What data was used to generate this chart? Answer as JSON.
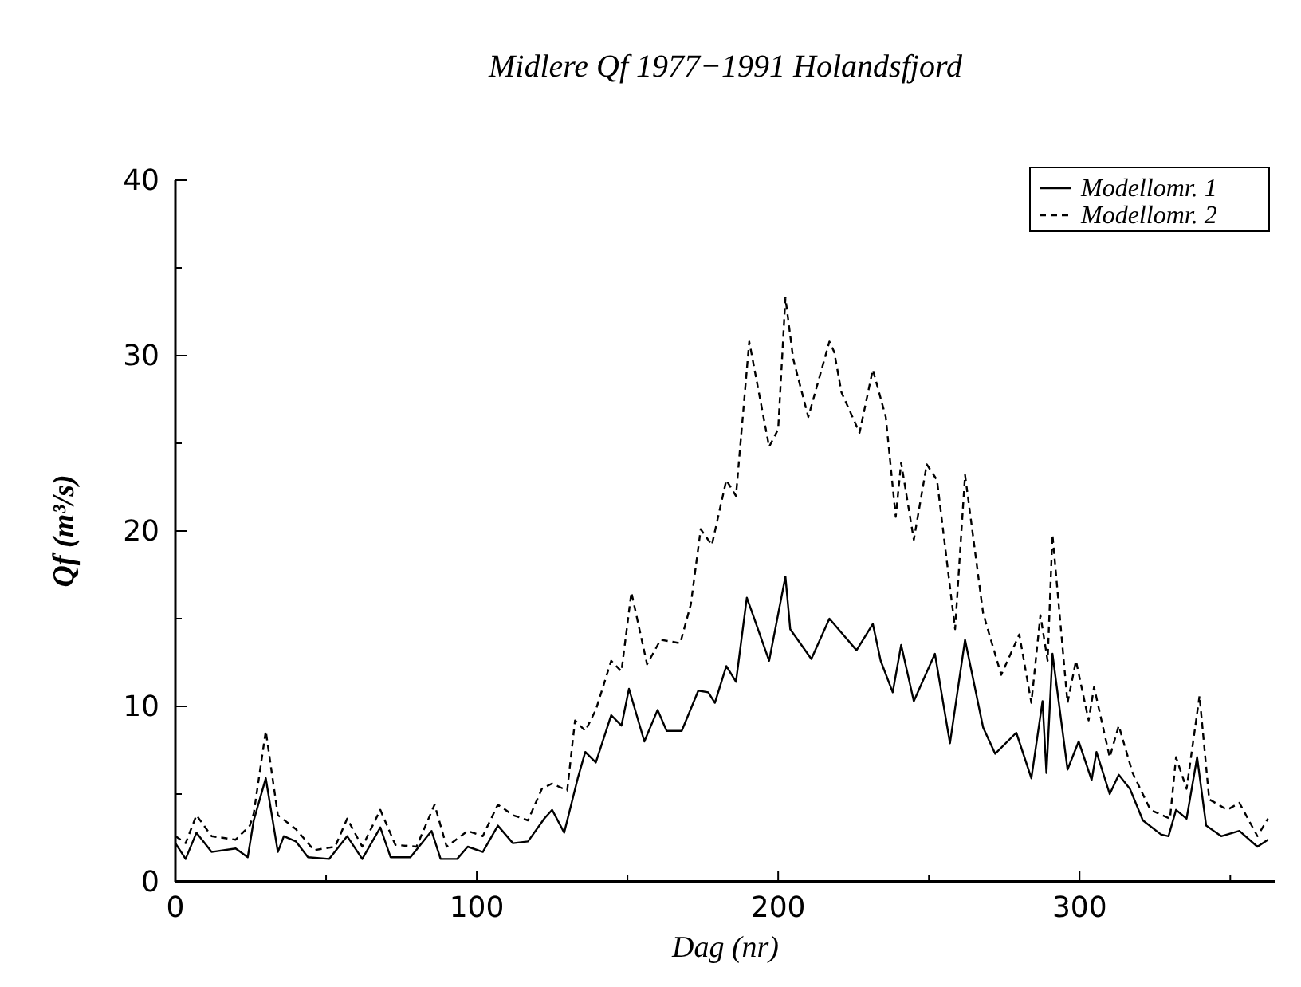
{
  "chart_data": {
    "type": "line",
    "title": "Midlere Qf 1977−1991 Holandsfjord",
    "xlabel": "Dag (nr)",
    "ylabel": "Qf (m³/s)",
    "xlim": [
      0,
      365
    ],
    "xticks": [
      0,
      {
        "value": 50,
        "label": null
      },
      100,
      {
        "value": 150,
        "label": null
      },
      200,
      {
        "value": 250,
        "label": null
      },
      300,
      {
        "value": 350,
        "label": null
      }
    ],
    "ylim": [
      0,
      40
    ],
    "yticks": [
      0,
      {
        "value": 5,
        "label": null
      },
      10,
      {
        "value": 15,
        "label": null
      },
      20,
      {
        "value": 25,
        "label": null
      },
      30,
      {
        "value": 35,
        "label": null
      },
      40
    ],
    "legend": "top right",
    "grid": false,
    "series": [
      {
        "name": "Modellomr. 1",
        "color": "#000000",
        "line_style": "solid",
        "x": [
          0,
          3.4,
          7,
          12,
          20,
          24,
          26,
          30,
          34,
          36,
          40,
          44,
          51,
          57,
          62,
          68,
          71.4,
          78,
          85,
          88,
          93.5,
          97,
          102,
          107,
          112,
          117,
          122.4,
          125,
          129,
          133.5,
          136,
          139.5,
          144.6,
          148,
          150.5,
          155.6,
          160,
          163,
          168,
          173.5,
          176.8,
          179,
          182.8,
          186,
          189.6,
          197,
          202.4,
          204,
          211,
          217,
          220,
          226,
          231.4,
          234,
          238,
          240.8,
          245,
          252,
          257,
          262,
          268,
          272,
          279,
          284,
          287.7,
          289,
          291,
          296,
          299.7,
          304,
          305.6,
          310,
          313,
          316.7,
          321,
          327,
          329.5,
          332,
          335.5,
          339,
          342,
          347,
          353,
          359,
          362.5
        ],
        "values": [
          2.2,
          1.3,
          2.8,
          1.7,
          1.9,
          1.4,
          3.5,
          5.9,
          1.7,
          2.6,
          2.3,
          1.4,
          1.3,
          2.6,
          1.3,
          3.1,
          1.4,
          1.4,
          2.9,
          1.3,
          1.3,
          2.0,
          1.7,
          3.2,
          2.2,
          2.3,
          3.6,
          4.1,
          2.8,
          5.9,
          7.4,
          6.8,
          9.5,
          8.9,
          11.0,
          8.0,
          9.8,
          8.6,
          8.6,
          10.9,
          10.8,
          10.2,
          12.3,
          11.4,
          16.2,
          12.6,
          17.4,
          14.4,
          12.7,
          15.0,
          14.4,
          13.2,
          14.7,
          12.6,
          10.8,
          13.5,
          10.3,
          13.0,
          7.9,
          13.8,
          8.8,
          7.3,
          8.5,
          5.9,
          10.3,
          6.2,
          13.0,
          6.4,
          8.0,
          5.8,
          7.4,
          5.0,
          6.1,
          5.3,
          3.5,
          2.7,
          2.6,
          4.1,
          3.6,
          7.1,
          3.2,
          2.6,
          2.9,
          2.0,
          2.4
        ]
      },
      {
        "name": "Modellomr. 2",
        "color": "#000000",
        "line_style": "dashed",
        "x": [
          0,
          3.4,
          7,
          12,
          20,
          24.7,
          26,
          30,
          34,
          40,
          46,
          53,
          57,
          62,
          68,
          73,
          80,
          86,
          90,
          97,
          102,
          107,
          112,
          117,
          121.6,
          125,
          130,
          132.6,
          136,
          139.5,
          144.6,
          148,
          151.3,
          156.5,
          161,
          167.5,
          171,
          174.3,
          178,
          182.8,
          186,
          190.4,
          197,
          200,
          202.4,
          205,
          210,
          217,
          218.6,
          221,
          227,
          231.4,
          235.7,
          239,
          240.8,
          245,
          249.3,
          252.7,
          258.7,
          262,
          268,
          274,
          280,
          284,
          287,
          289.4,
          291,
          296,
          298.8,
          303,
          304.8,
          310,
          313,
          317.6,
          323.5,
          330,
          332,
          335.5,
          339.8,
          343,
          349,
          353,
          359,
          362.5
        ],
        "values": [
          2.6,
          2.2,
          3.8,
          2.6,
          2.4,
          3.2,
          3.9,
          8.6,
          3.8,
          3.0,
          1.8,
          2.0,
          3.6,
          2.0,
          4.1,
          2.1,
          2.0,
          4.4,
          2.0,
          2.9,
          2.6,
          4.4,
          3.8,
          3.5,
          5.3,
          5.6,
          5.2,
          9.2,
          8.6,
          9.8,
          12.6,
          12.0,
          16.5,
          12.4,
          13.8,
          13.6,
          15.8,
          20.1,
          19.2,
          22.9,
          22.0,
          30.8,
          24.8,
          25.8,
          33.3,
          29.8,
          26.5,
          30.8,
          30.2,
          27.9,
          25.6,
          29.2,
          26.5,
          20.8,
          23.9,
          19.5,
          23.8,
          22.9,
          14.4,
          23.2,
          15.3,
          11.8,
          14.1,
          10.2,
          15.2,
          12.6,
          19.8,
          10.2,
          12.6,
          9.2,
          11.1,
          7.1,
          8.9,
          6.2,
          4.1,
          3.6,
          7.1,
          5.3,
          10.6,
          4.7,
          4.1,
          4.5,
          2.6,
          3.6
        ]
      }
    ]
  }
}
